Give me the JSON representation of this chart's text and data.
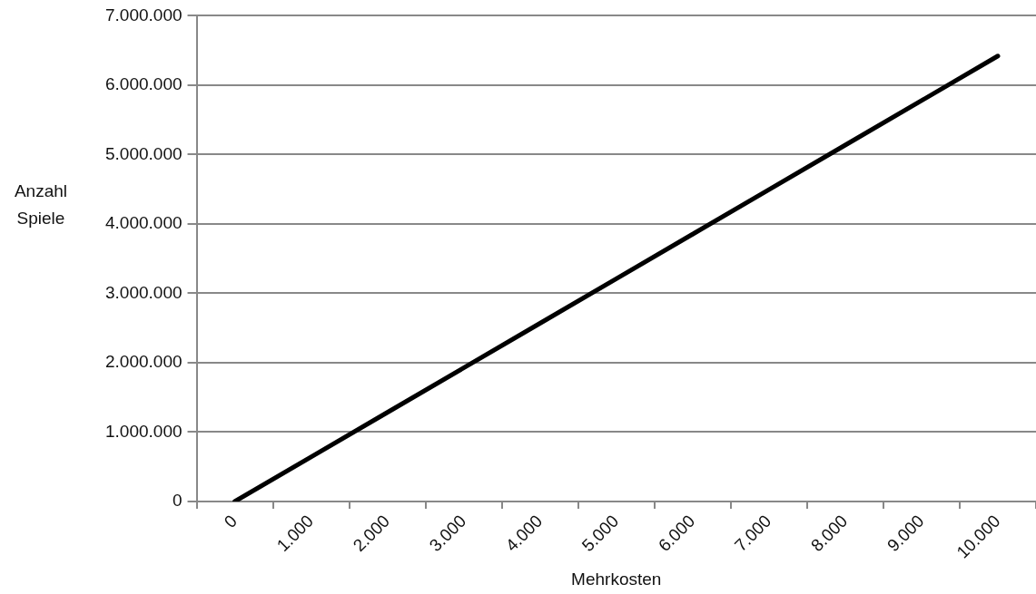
{
  "chart_data": {
    "type": "line",
    "xlabel": "Mehrkosten",
    "ylabel": "Anzahl Spiele",
    "categories": [
      "0",
      "1.000",
      "2.000",
      "3.000",
      "4.000",
      "5.000",
      "6.000",
      "7.000",
      "8.000",
      "9.000",
      "10.000"
    ],
    "series": [
      {
        "color": "#000000",
        "values": [
          0,
          642000,
          1284000,
          1926000,
          2568000,
          3210000,
          3852000,
          4494000,
          5136000,
          5778000,
          6420000
        ]
      }
    ],
    "ylim": [
      0,
      7000000
    ],
    "yticks": [
      0,
      {
        "value": 1000000,
        "label": "1.000.000"
      },
      {
        "value": 2000000,
        "label": "2.000.000"
      },
      {
        "value": 3000000,
        "label": "3.000.000"
      },
      {
        "value": 4000000,
        "label": "4.000.000"
      },
      {
        "value": 5000000,
        "label": "5.000.000"
      },
      {
        "value": 6000000,
        "label": "6.000.000"
      },
      {
        "value": 7000000,
        "label": "7.000.000"
      }
    ],
    "grid": "y",
    "legend": false,
    "marker": "none",
    "line_style": "solid"
  }
}
